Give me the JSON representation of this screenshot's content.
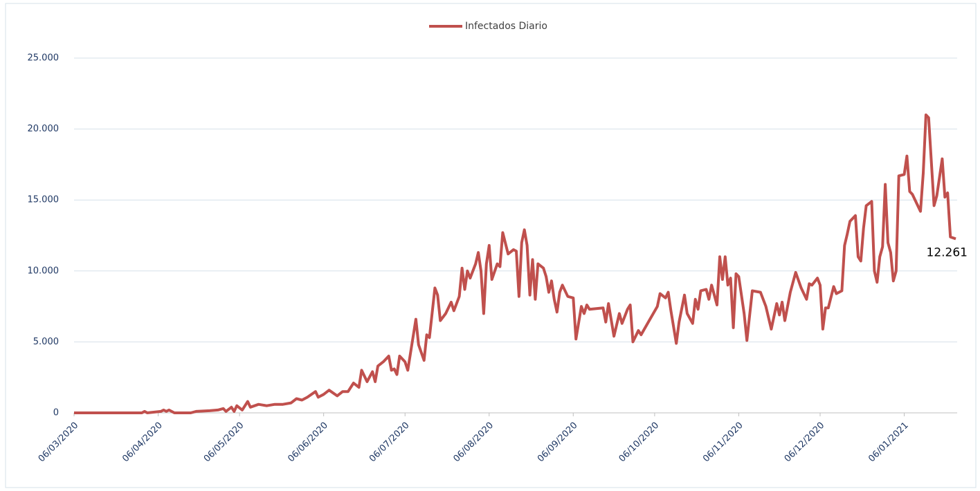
{
  "chart_data": {
    "type": "line",
    "series": [
      {
        "name": "Infectados Diario",
        "color": "#c0504d",
        "x": [
          "06/03/2020",
          "15/03/2020",
          "25/03/2020",
          "31/03/2020",
          "01/04/2020",
          "02/04/2020",
          "07/04/2020",
          "08/04/2020",
          "09/04/2020",
          "10/04/2020",
          "12/04/2020",
          "18/04/2020",
          "20/04/2020",
          "25/04/2020",
          "28/04/2020",
          "30/04/2020",
          "01/05/2020",
          "03/05/2020",
          "04/05/2020",
          "05/05/2020",
          "07/05/2020",
          "09/05/2020",
          "10/05/2020",
          "13/05/2020",
          "16/05/2020",
          "19/05/2020",
          "22/05/2020",
          "25/05/2020",
          "27/05/2020",
          "29/05/2020",
          "31/05/2020",
          "03/06/2020",
          "04/06/2020",
          "06/06/2020",
          "08/06/2020",
          "11/06/2020",
          "13/06/2020",
          "15/06/2020",
          "17/06/2020",
          "19/06/2020",
          "20/06/2020",
          "22/06/2020",
          "24/06/2020",
          "25/06/2020",
          "26/06/2020",
          "28/06/2020",
          "30/06/2020",
          "01/07/2020",
          "02/07/2020",
          "03/07/2020",
          "04/07/2020",
          "06/07/2020",
          "07/07/2020",
          "08/07/2020",
          "10/07/2020",
          "11/07/2020",
          "13/07/2020",
          "14/07/2020",
          "15/07/2020",
          "17/07/2020",
          "18/07/2020",
          "19/07/2020",
          "21/07/2020",
          "23/07/2020",
          "24/07/2020",
          "26/07/2020",
          "27/07/2020",
          "28/07/2020",
          "29/07/2020",
          "30/07/2020",
          "01/08/2020",
          "02/08/2020",
          "03/08/2020",
          "04/08/2020",
          "05/08/2020",
          "06/08/2020",
          "07/08/2020",
          "09/08/2020",
          "10/08/2020",
          "11/08/2020",
          "13/08/2020",
          "15/08/2020",
          "16/08/2020",
          "17/08/2020",
          "18/08/2020",
          "19/08/2020",
          "20/08/2020",
          "21/08/2020",
          "22/08/2020",
          "23/08/2020",
          "24/08/2020",
          "26/08/2020",
          "27/08/2020",
          "28/08/2020",
          "29/08/2020",
          "30/08/2020",
          "31/08/2020",
          "01/09/2020",
          "02/09/2020",
          "04/09/2020",
          "06/09/2020",
          "07/09/2020",
          "09/09/2020",
          "10/09/2020",
          "11/09/2020",
          "12/09/2020",
          "17/09/2020",
          "18/09/2020",
          "19/09/2020",
          "21/09/2020",
          "23/09/2020",
          "24/09/2020",
          "26/09/2020",
          "27/09/2020",
          "28/09/2020",
          "30/09/2020",
          "01/10/2020",
          "04/10/2020",
          "07/10/2020",
          "08/10/2020",
          "10/10/2020",
          "11/10/2020",
          "12/10/2020",
          "14/10/2020",
          "15/10/2020",
          "17/10/2020",
          "18/10/2020",
          "20/10/2020",
          "21/10/2020",
          "22/10/2020",
          "23/10/2020",
          "25/10/2020",
          "26/10/2020",
          "27/10/2020",
          "29/10/2020",
          "30/10/2020",
          "31/10/2020",
          "01/11/2020",
          "02/11/2020",
          "03/11/2020",
          "04/11/2020",
          "05/11/2020",
          "06/11/2020",
          "08/11/2020",
          "09/11/2020",
          "11/11/2020",
          "14/11/2020",
          "16/11/2020",
          "18/11/2020",
          "20/11/2020",
          "21/11/2020",
          "22/11/2020",
          "23/11/2020",
          "25/11/2020",
          "27/11/2020",
          "29/11/2020",
          "01/12/2020",
          "02/12/2020",
          "03/12/2020",
          "05/12/2020",
          "06/12/2020",
          "07/12/2020",
          "08/12/2020",
          "09/12/2020",
          "11/12/2020",
          "12/12/2020",
          "14/12/2020",
          "15/12/2020",
          "16/12/2020",
          "17/12/2020",
          "19/12/2020",
          "20/12/2020",
          "21/12/2020",
          "22/12/2020",
          "23/12/2020",
          "25/12/2020",
          "26/12/2020",
          "27/12/2020",
          "28/12/2020",
          "29/12/2020",
          "30/12/2020",
          "31/12/2020",
          "01/01/2021",
          "02/01/2021",
          "03/01/2021",
          "04/01/2021",
          "06/01/2021",
          "07/01/2021",
          "08/01/2021",
          "09/01/2021",
          "12/01/2021",
          "13/01/2021",
          "14/01/2021",
          "15/01/2021",
          "17/01/2021",
          "18/01/2021",
          "20/01/2021",
          "21/01/2021",
          "22/01/2021",
          "23/01/2021",
          "25/01/2021"
        ],
        "values": [
          0,
          0,
          0,
          0,
          100,
          0,
          100,
          200,
          100,
          200,
          0,
          0,
          100,
          150,
          200,
          300,
          100,
          400,
          100,
          500,
          200,
          800,
          400,
          600,
          500,
          600,
          600,
          700,
          1000,
          900,
          1100,
          1500,
          1100,
          1300,
          1600,
          1200,
          1500,
          1500,
          2100,
          1800,
          3000,
          2200,
          2900,
          2200,
          3300,
          3600,
          4000,
          3000,
          3100,
          2700,
          4000,
          3600,
          3000,
          4200,
          6600,
          4800,
          3700,
          5500,
          5300,
          8800,
          8300,
          6500,
          7000,
          7800,
          7200,
          8200,
          10200,
          8700,
          10000,
          9500,
          10500,
          11300,
          10000,
          7000,
          10500,
          11800,
          9400,
          10500,
          10300,
          12700,
          11200,
          11500,
          11400,
          8200,
          12000,
          12900,
          11800,
          8300,
          10800,
          8000,
          10500,
          10200,
          9600,
          8500,
          9300,
          8000,
          7100,
          8500,
          9000,
          8200,
          8100,
          5200,
          7500,
          7000,
          7600,
          7300,
          7400,
          6400,
          7700,
          5400,
          7000,
          6300,
          7300,
          7600,
          5000,
          5800,
          5500,
          6500,
          7500,
          8400,
          8100,
          8500,
          7200,
          4900,
          6400,
          8300,
          7000,
          6300,
          8000,
          7300,
          8600,
          8700,
          8000,
          9000,
          7600,
          11000,
          9400,
          11000,
          9000,
          9500,
          6000,
          9800,
          9600,
          7000,
          5100,
          8600,
          8500,
          7500,
          5900,
          7700,
          6900,
          7800,
          6500,
          8500,
          9900,
          8800,
          8000,
          9100,
          9000,
          9500,
          9000,
          5900,
          7400,
          7400,
          8900,
          8400,
          8600,
          11800,
          12600,
          13500,
          13900,
          11000,
          10700,
          13000,
          14600,
          14900,
          10000,
          9200,
          11000,
          11700,
          16100,
          12000,
          11300,
          9300,
          10000,
          16700,
          16800,
          18100,
          15600,
          15400,
          14200,
          16900,
          21000,
          20800,
          14600,
          15300,
          17900,
          15200,
          15500,
          12400,
          12261
        ]
      }
    ],
    "annotation": "12.261",
    "xlim": [
      "06/03/2020",
      "25/01/2021"
    ],
    "xticks": [
      "06/03/2020",
      "06/04/2020",
      "06/05/2020",
      "06/06/2020",
      "06/07/2020",
      "06/08/2020",
      "06/09/2020",
      "06/10/2020",
      "06/11/2020",
      "06/12/2020",
      "06/01/2021"
    ],
    "ylim": [
      0,
      25000
    ],
    "yticks": [
      0,
      {
        "value": 5000,
        "label": "5.000"
      },
      {
        "value": 10000,
        "label": "10.000"
      },
      {
        "value": 15000,
        "label": "15.000"
      },
      {
        "value": 20000,
        "label": "20.000"
      },
      {
        "value": 25000,
        "label": "25.000"
      }
    ],
    "grid": true,
    "legend": "top"
  }
}
